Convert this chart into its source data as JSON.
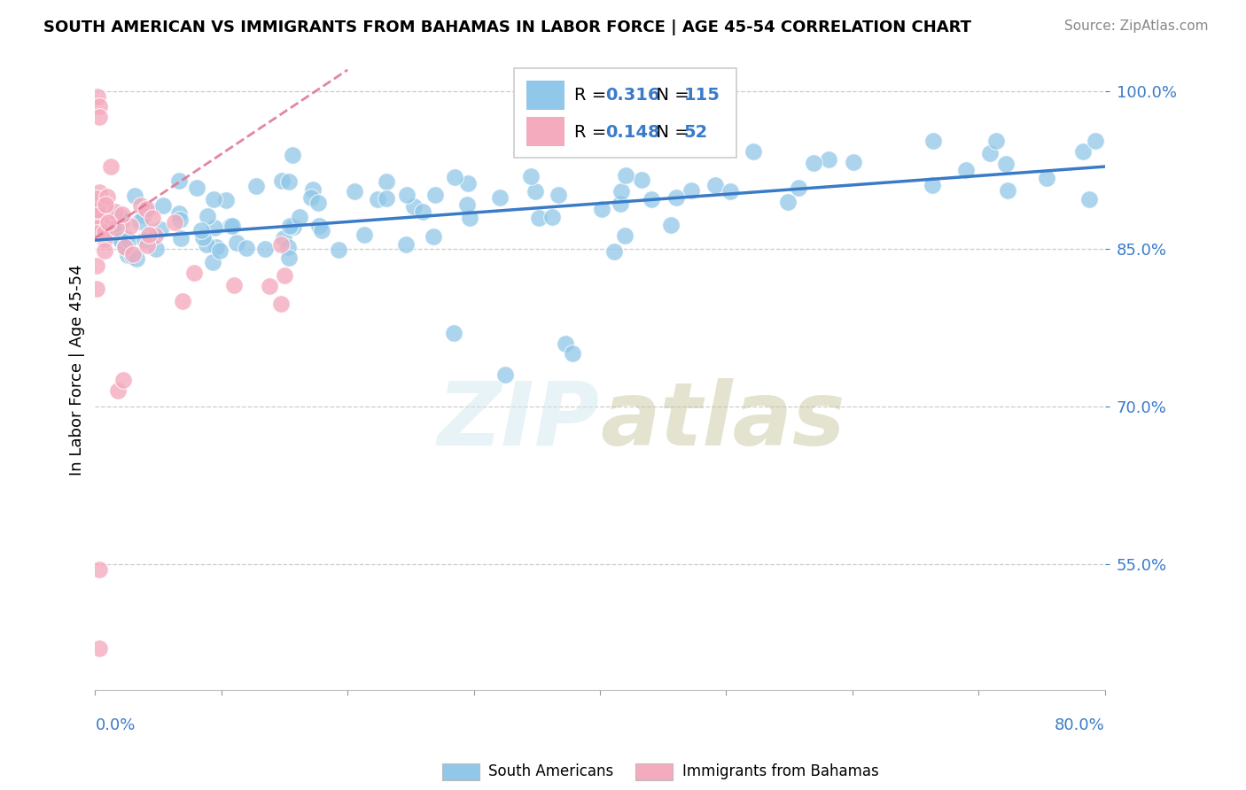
{
  "title": "SOUTH AMERICAN VS IMMIGRANTS FROM BAHAMAS IN LABOR FORCE | AGE 45-54 CORRELATION CHART",
  "source": "Source: ZipAtlas.com",
  "ylabel": "In Labor Force | Age 45-54",
  "y_tick_labels": [
    "55.0%",
    "70.0%",
    "85.0%",
    "100.0%"
  ],
  "y_tick_values": [
    0.55,
    0.7,
    0.85,
    1.0
  ],
  "xlim": [
    0.0,
    0.8
  ],
  "ylim": [
    0.43,
    1.04
  ],
  "blue_color": "#91C7E8",
  "pink_color": "#F5ABBE",
  "blue_line_color": "#3A7BC8",
  "pink_line_color": "#E07090",
  "blue_R": 0.316,
  "blue_N": 115,
  "pink_R": 0.148,
  "pink_N": 52,
  "leg_R_color": "#3A7BC8",
  "leg_N_color": "#3A7BC8"
}
